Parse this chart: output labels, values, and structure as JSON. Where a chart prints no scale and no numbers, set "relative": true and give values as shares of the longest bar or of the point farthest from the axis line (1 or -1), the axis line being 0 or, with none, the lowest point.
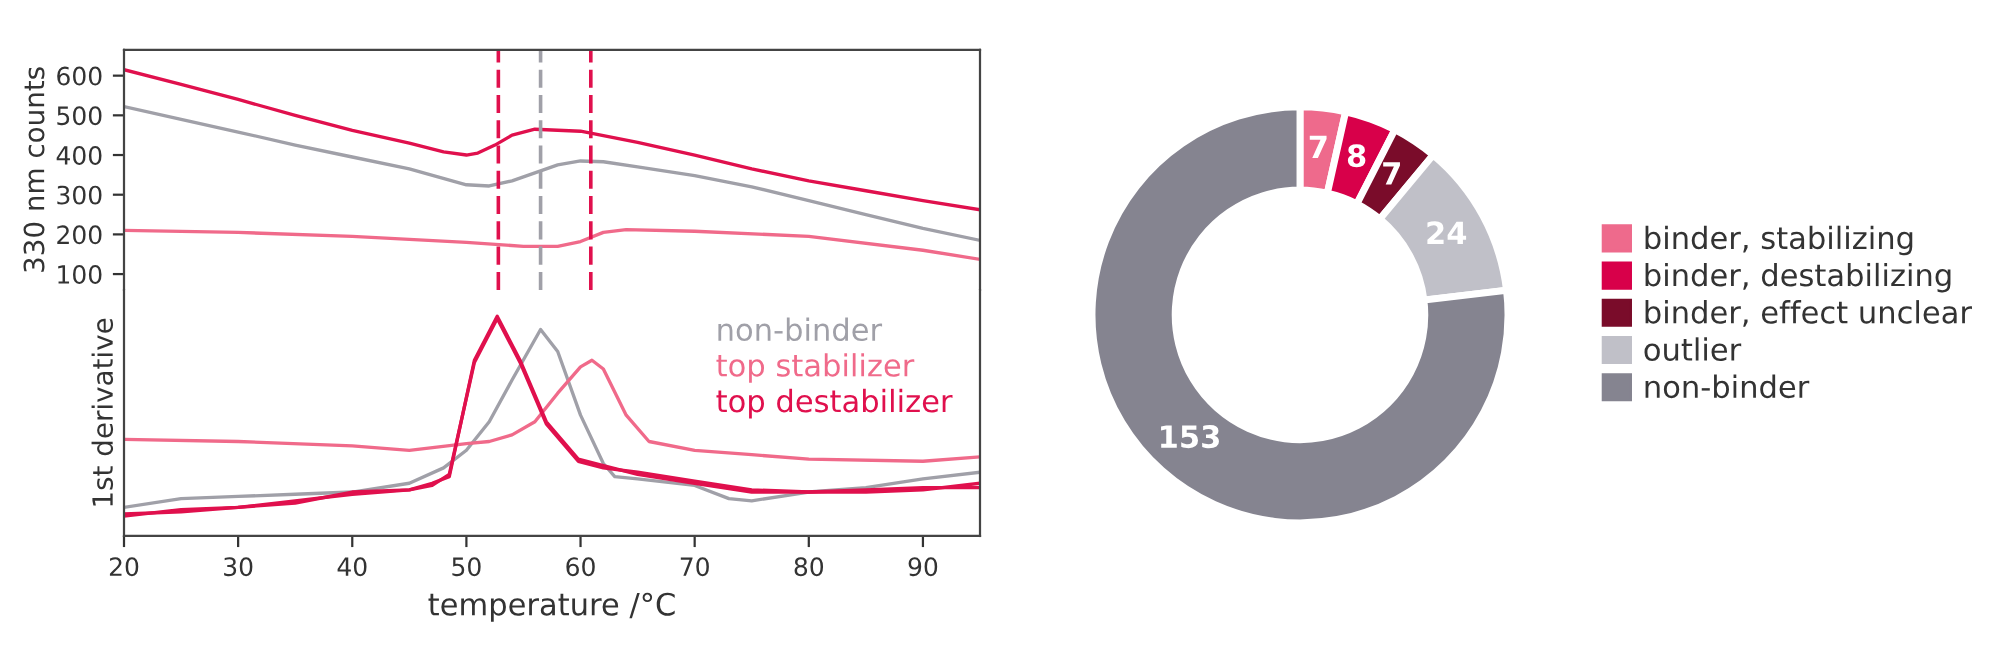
{
  "chart_data": [
    {
      "type": "line",
      "ylabel": "330 nm counts",
      "xlim": [
        20,
        95
      ],
      "xticks": [
        20,
        30,
        40,
        50,
        60,
        70,
        80,
        90
      ],
      "ylim": [
        60,
        665
      ],
      "yticks": [
        100,
        200,
        300,
        400,
        500,
        600
      ],
      "tick_labels": "y",
      "grid": false,
      "ref_lines": [
        {
          "axis": "x",
          "value": 52.8,
          "color": "#e0104d",
          "line_style": "dashed"
        },
        {
          "axis": "x",
          "value": 56.5,
          "color": "#a0a0a8",
          "line_style": "dashed"
        },
        {
          "axis": "x",
          "value": 60.9,
          "color": "#e0104d",
          "line_style": "dashed"
        }
      ],
      "series": [
        {
          "color": "#a0a0a8",
          "x": [
            20,
            25,
            30,
            35,
            40,
            45,
            50,
            52,
            54,
            56,
            58,
            60,
            62,
            65,
            70,
            75,
            80,
            85,
            90,
            95
          ],
          "values": [
            522,
            490,
            458,
            425,
            395,
            365,
            325,
            322,
            335,
            355,
            375,
            385,
            383,
            370,
            348,
            320,
            285,
            250,
            215,
            185
          ]
        },
        {
          "color": "#f06a8a",
          "x": [
            20,
            30,
            40,
            50,
            55,
            58,
            60,
            62,
            64,
            70,
            80,
            90,
            95
          ],
          "values": [
            210,
            205,
            195,
            180,
            170,
            170,
            182,
            205,
            212,
            208,
            195,
            160,
            137
          ]
        },
        {
          "color": "#e0104d",
          "x": [
            20,
            25,
            30,
            35,
            40,
            45,
            48,
            50,
            51,
            52.5,
            54,
            56,
            60,
            65,
            70,
            75,
            80,
            85,
            90,
            95
          ],
          "values": [
            615,
            578,
            540,
            500,
            462,
            430,
            408,
            400,
            405,
            425,
            450,
            465,
            460,
            432,
            400,
            365,
            335,
            310,
            285,
            262
          ]
        }
      ]
    },
    {
      "type": "line",
      "ylabel": "1st derivative",
      "xlabel": "temperature /°C",
      "xlim": [
        20,
        95
      ],
      "xticks": [
        20,
        30,
        40,
        50,
        60,
        70,
        80,
        90
      ],
      "relative": true,
      "tick_labels": "x",
      "grid": false,
      "legend": "top right",
      "series": [
        {
          "name": "non-binder",
          "color": "#a0a0a8",
          "x": [
            20,
            25,
            30,
            35,
            40,
            45,
            48,
            50,
            52,
            54,
            56.5,
            58,
            60,
            62,
            63,
            65,
            70,
            73,
            75,
            80,
            85,
            90,
            95
          ],
          "values": [
            0.13,
            0.17,
            0.18,
            0.19,
            0.2,
            0.24,
            0.31,
            0.39,
            0.52,
            0.71,
            0.94,
            0.84,
            0.55,
            0.33,
            0.27,
            0.26,
            0.23,
            0.17,
            0.16,
            0.2,
            0.22,
            0.26,
            0.29
          ]
        },
        {
          "name": "top stabilizer",
          "color": "#f06a8a",
          "x": [
            20,
            30,
            40,
            45,
            50,
            52,
            54,
            56,
            58,
            60,
            61,
            62,
            64,
            66,
            70,
            75,
            80,
            90,
            95
          ],
          "values": [
            0.44,
            0.43,
            0.41,
            0.39,
            0.42,
            0.43,
            0.46,
            0.52,
            0.65,
            0.77,
            0.8,
            0.76,
            0.55,
            0.43,
            0.39,
            0.37,
            0.35,
            0.34,
            0.36
          ]
        },
        {
          "name": "top destabilizer",
          "color": "#e0104d",
          "x": [
            20,
            25,
            30,
            35,
            40,
            45,
            47,
            48.5,
            50.7,
            52.7,
            54.7,
            57,
            59.8,
            62,
            65,
            70,
            75,
            80,
            85,
            90,
            95
          ],
          "values": [
            0.1,
            0.11,
            0.13,
            0.15,
            0.2,
            0.21,
            0.24,
            0.27,
            0.8,
            1.0,
            0.8,
            0.52,
            0.35,
            0.32,
            0.28,
            0.24,
            0.2,
            0.2,
            0.2,
            0.21,
            0.24
          ]
        },
        {
          "color": "#e0104d",
          "x": [
            20,
            25,
            30,
            35,
            40,
            45,
            47,
            48.5,
            50.7,
            52.7,
            54.7,
            57,
            59.8,
            62,
            65,
            70,
            75,
            80,
            85,
            90,
            95
          ],
          "values": [
            0.09,
            0.12,
            0.13,
            0.16,
            0.19,
            0.21,
            0.23,
            0.28,
            0.79,
            0.99,
            0.79,
            0.51,
            0.34,
            0.31,
            0.29,
            0.25,
            0.21,
            0.2,
            0.21,
            0.22,
            0.22
          ]
        }
      ]
    },
    {
      "type": "donut",
      "categories": [
        "binder, stabilizing",
        "binder, destabilizing",
        "binder, effect unclear",
        "outlier",
        "non-binder"
      ],
      "values": [
        7,
        8,
        7,
        24,
        153
      ],
      "colors": [
        "#ee6a8c",
        "#d8004a",
        "#7a0c2a",
        "#c0c0c8",
        "#858490"
      ],
      "data_labels": true,
      "legend": "right"
    }
  ]
}
